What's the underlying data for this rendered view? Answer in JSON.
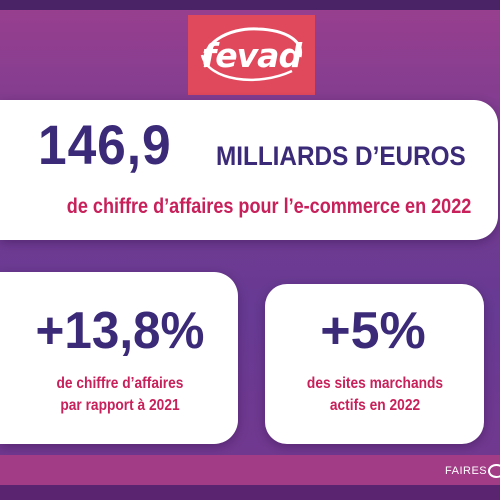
{
  "logo": {
    "text": "fevad",
    "background_color": "#e0485c"
  },
  "headline": {
    "number": "146,9",
    "unit": "MILLIARDS D’EUROS",
    "subtitle": "de chiffre d’affaires pour l’e-commerce en 2022"
  },
  "stats": [
    {
      "number": "+13,8%",
      "line1": "de chiffre d’affaires",
      "line2": "par rapport à 2021"
    },
    {
      "number": "+5%",
      "line1": "des sites marchands",
      "line2": "actifs en 2022"
    }
  ],
  "footer": {
    "brand_text": "FAIRES"
  },
  "colors": {
    "number_color": "#3b2a78",
    "text_accent": "#c8205a",
    "background_top": "#9a3f8f",
    "background_bottom": "#673a93"
  }
}
